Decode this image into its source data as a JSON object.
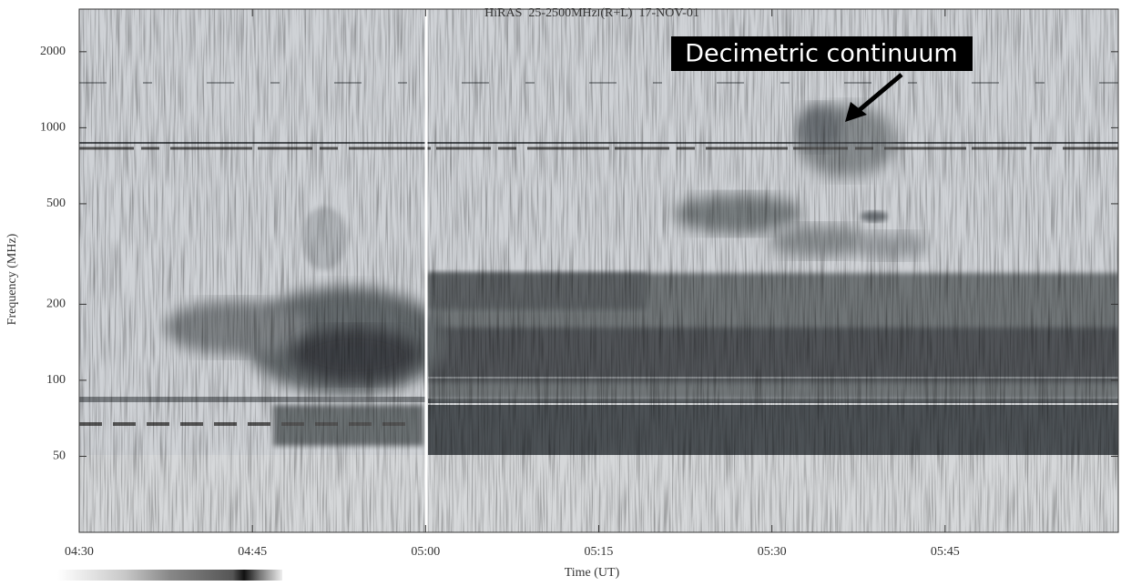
{
  "chart_data": {
    "type": "spectrogram",
    "title": "HiRAS  25-2500MHz (R+L)  17-NOV-01",
    "x_label": "Time (UT)",
    "y_label": "Frequency (MHz)",
    "annotation": "Decimetric continuum",
    "xlim": [
      "04:30",
      "06:00"
    ],
    "xticks": [
      "04:30",
      "04:45",
      "05:00",
      "05:15",
      "05:30",
      "05:45"
    ],
    "ylim": [
      25,
      2950
    ],
    "yticks": [
      50,
      100,
      200,
      500,
      1000,
      2000
    ],
    "log_y": true,
    "grid": false
  }
}
